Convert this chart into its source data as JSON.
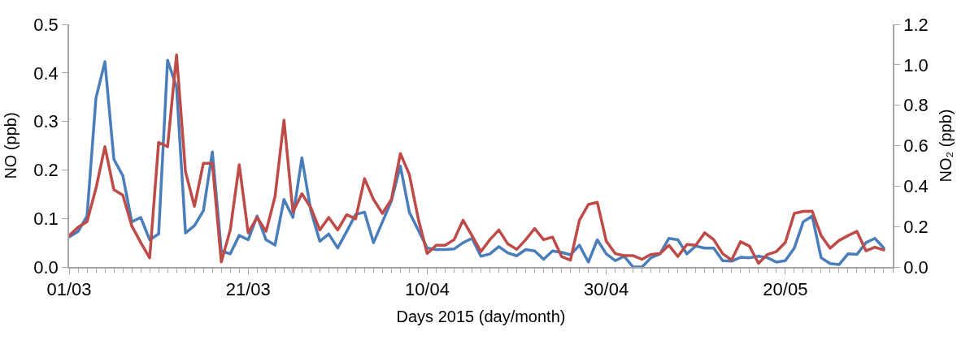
{
  "chart_data": {
    "type": "line",
    "xlabel": "Days 2015 (day/month)",
    "ylabel": "NO (ppb)",
    "y2label": "NO₂ (ppb)",
    "x": [
      "2015-03-01",
      "2015-03-02",
      "2015-03-03",
      "2015-03-04",
      "2015-03-05",
      "2015-03-06",
      "2015-03-07",
      "2015-03-08",
      "2015-03-09",
      "2015-03-10",
      "2015-03-11",
      "2015-03-12",
      "2015-03-13",
      "2015-03-14",
      "2015-03-15",
      "2015-03-16",
      "2015-03-17",
      "2015-03-18",
      "2015-03-19",
      "2015-03-20",
      "2015-03-21",
      "2015-03-22",
      "2015-03-23",
      "2015-03-24",
      "2015-03-25",
      "2015-03-26",
      "2015-03-27",
      "2015-03-28",
      "2015-03-29",
      "2015-03-30",
      "2015-03-31",
      "2015-04-01",
      "2015-04-02",
      "2015-04-03",
      "2015-04-04",
      "2015-04-05",
      "2015-04-06",
      "2015-04-07",
      "2015-04-08",
      "2015-04-09",
      "2015-04-10",
      "2015-04-11",
      "2015-04-12",
      "2015-04-13",
      "2015-04-14",
      "2015-04-15",
      "2015-04-16",
      "2015-04-17",
      "2015-04-18",
      "2015-04-19",
      "2015-04-20",
      "2015-04-21",
      "2015-04-22",
      "2015-04-23",
      "2015-04-24",
      "2015-04-25",
      "2015-04-26",
      "2015-04-27",
      "2015-04-28",
      "2015-04-29",
      "2015-04-30",
      "2015-05-01",
      "2015-05-02",
      "2015-05-03",
      "2015-05-04",
      "2015-05-05",
      "2015-05-06",
      "2015-05-07",
      "2015-05-08",
      "2015-05-09",
      "2015-05-10",
      "2015-05-11",
      "2015-05-12",
      "2015-05-13",
      "2015-05-14",
      "2015-05-15",
      "2015-05-16",
      "2015-05-17",
      "2015-05-18",
      "2015-05-19",
      "2015-05-20",
      "2015-05-21",
      "2015-05-22",
      "2015-05-23",
      "2015-05-24",
      "2015-05-25",
      "2015-05-26",
      "2015-05-27",
      "2015-05-28",
      "2015-05-29",
      "2015-05-30",
      "2015-05-31"
    ],
    "series": [
      {
        "color": "#4a7ebb",
        "values": [
          0.062,
          0.073,
          0.105,
          0.348,
          0.423,
          0.222,
          0.188,
          0.093,
          0.102,
          0.056,
          0.068,
          0.426,
          0.371,
          0.07,
          0.085,
          0.116,
          0.237,
          0.033,
          0.027,
          0.065,
          0.056,
          0.105,
          0.056,
          0.045,
          0.139,
          0.102,
          0.225,
          0.116,
          0.053,
          0.068,
          0.039,
          0.073,
          0.108,
          0.113,
          0.05,
          0.093,
          0.136,
          0.208,
          0.113,
          0.076,
          0.039,
          0.036,
          0.036,
          0.037,
          0.05,
          0.059,
          0.022,
          0.027,
          0.042,
          0.029,
          0.023,
          0.036,
          0.033,
          0.016,
          0.033,
          0.03,
          0.025,
          0.045,
          0.01,
          0.056,
          0.027,
          0.013,
          0.022,
          0.0,
          0.0,
          0.019,
          0.027,
          0.059,
          0.056,
          0.027,
          0.043,
          0.039,
          0.039,
          0.013,
          0.012,
          0.02,
          0.019,
          0.022,
          0.019,
          0.01,
          0.013,
          0.039,
          0.093,
          0.105,
          0.019,
          0.007,
          0.005,
          0.027,
          0.026,
          0.05,
          0.059,
          0.039
        ]
      },
      {
        "color": "#be4b48",
        "axis": "y2",
        "values": [
          0.155,
          0.197,
          0.224,
          0.389,
          0.595,
          0.382,
          0.355,
          0.203,
          0.121,
          0.045,
          0.616,
          0.595,
          1.049,
          0.471,
          0.3,
          0.513,
          0.513,
          0.025,
          0.183,
          0.506,
          0.169,
          0.245,
          0.176,
          0.348,
          0.726,
          0.272,
          0.362,
          0.293,
          0.183,
          0.245,
          0.183,
          0.258,
          0.238,
          0.437,
          0.334,
          0.265,
          0.334,
          0.561,
          0.458,
          0.238,
          0.066,
          0.107,
          0.107,
          0.135,
          0.231,
          0.155,
          0.076,
          0.135,
          0.183,
          0.114,
          0.087,
          0.135,
          0.19,
          0.135,
          0.148,
          0.052,
          0.034,
          0.231,
          0.309,
          0.32,
          0.128,
          0.066,
          0.056,
          0.056,
          0.038,
          0.062,
          0.066,
          0.107,
          0.052,
          0.111,
          0.107,
          0.169,
          0.135,
          0.066,
          0.034,
          0.125,
          0.103,
          0.018,
          0.062,
          0.076,
          0.121,
          0.265,
          0.275,
          0.276,
          0.155,
          0.093,
          0.131,
          0.155,
          0.176,
          0.08,
          0.098,
          0.084
        ]
      }
    ],
    "xlim": [
      "2015-03-01",
      "2015-06-01"
    ],
    "xticks": [
      {
        "value": "2015-03-01",
        "label": "01/03"
      },
      {
        "value": "2015-03-21",
        "label": "21/03"
      },
      {
        "value": "2015-04-10",
        "label": "10/04"
      },
      {
        "value": "2015-04-30",
        "label": "30/04"
      },
      {
        "value": "2015-05-20",
        "label": "20/05"
      }
    ],
    "ylim": [
      0,
      0.5
    ],
    "yticks": [
      {
        "value": 0,
        "label": "0.0"
      },
      0.1,
      0.2,
      0.3,
      0.4,
      0.5
    ],
    "y2lim": [
      0,
      1.2
    ],
    "y2ticks": [
      {
        "value": 0,
        "label": "0.0"
      },
      {
        "value": 0.2,
        "label": "0.2"
      },
      {
        "value": 0.4,
        "label": "0.4"
      },
      {
        "value": 0.6,
        "label": "0.6"
      },
      {
        "value": 0.8,
        "label": "0.8"
      },
      {
        "value": 1.0,
        "label": "1.0"
      },
      {
        "value": 1.2,
        "label": "1.2"
      }
    ],
    "marker": "none",
    "line_style": "solid"
  }
}
